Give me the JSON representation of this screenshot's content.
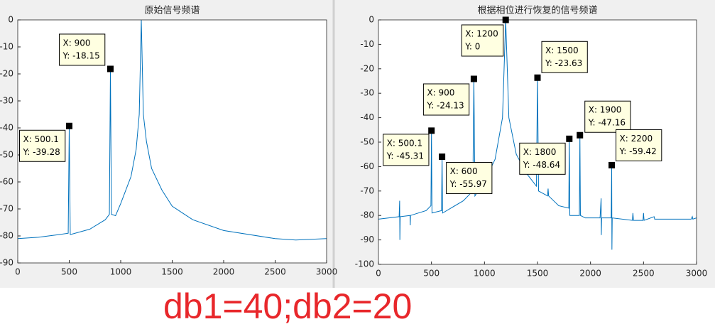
{
  "chart_data": [
    {
      "type": "line",
      "title": "原始信号频谱",
      "color": "#0072bd",
      "xlim": [
        0,
        3000
      ],
      "xticks": [
        0,
        500,
        1000,
        1500,
        2000,
        2500,
        3000
      ],
      "ylim": [
        -90,
        0
      ],
      "yticks": [
        0,
        -10,
        -20,
        -30,
        -40,
        -50,
        -60,
        -70,
        -80,
        -90
      ],
      "x": [
        0,
        200,
        400,
        490,
        500.1,
        510,
        700,
        850,
        890,
        900,
        910,
        950,
        1000,
        1100,
        1150,
        1180,
        1200,
        1220,
        1250,
        1300,
        1400,
        1500,
        1700,
        2000,
        2500,
        2700,
        3000
      ],
      "values": [
        -81,
        -80.5,
        -79.5,
        -79,
        -39.28,
        -79.5,
        -77.5,
        -74,
        -72,
        -18.15,
        -72,
        -72.5,
        -68,
        -58,
        -48,
        -35,
        0,
        -35,
        -45,
        -55,
        -63,
        -69,
        -74,
        -78,
        -81,
        -81.5,
        -81
      ],
      "annotations": [
        {
          "x": 500.1,
          "y": -39.28,
          "x_label": "X: 500.1",
          "y_label": "Y: -39.28"
        },
        {
          "x": 900,
          "y": -18.15,
          "x_label": "X: 900",
          "y_label": "Y: -18.15"
        }
      ]
    },
    {
      "type": "line",
      "title": "根据相位进行恢复的信号频谱",
      "color": "#0072bd",
      "xlim": [
        0,
        3000
      ],
      "xticks": [
        0,
        500,
        1000,
        1500,
        2000,
        2500,
        3000
      ],
      "ylim": [
        -100,
        0
      ],
      "yticks": [
        0,
        -10,
        -20,
        -30,
        -40,
        -50,
        -60,
        -70,
        -80,
        -90,
        -100
      ],
      "x": [
        0,
        195,
        200,
        202,
        205,
        298,
        300,
        302,
        450,
        495,
        500.1,
        505,
        595,
        600,
        605,
        800,
        890,
        900,
        910,
        1000,
        1100,
        1170,
        1200,
        1230,
        1300,
        1400,
        1490,
        1500,
        1510,
        1595,
        1600,
        1605,
        1700,
        1795,
        1800,
        1805,
        1895,
        1900,
        1905,
        1950,
        2090,
        2100,
        2102,
        2105,
        2195,
        2200,
        2202,
        2205,
        2395,
        2400,
        2405,
        2495,
        2500,
        2505,
        2600,
        2605,
        2950,
        2960,
        2965,
        3000
      ],
      "values": [
        -81.5,
        -80.5,
        -74,
        -90,
        -80.5,
        -80,
        -84,
        -80,
        -78,
        -76,
        -45.31,
        -79,
        -78,
        -55.97,
        -79,
        -74,
        -70,
        -24.13,
        -72,
        -66,
        -57,
        -40,
        0,
        -40,
        -55,
        -63,
        -68,
        -23.63,
        -70,
        -72,
        -69,
        -72,
        -76,
        -77,
        -48.64,
        -80,
        -80,
        -47.16,
        -80,
        -81,
        -81,
        -73,
        -88,
        -81,
        -81,
        -59.42,
        -94,
        -81,
        -82,
        -79,
        -82,
        -82,
        -79,
        -82,
        -80.5,
        -81.5,
        -81.5,
        -80.5,
        -81.5,
        -81
      ],
      "annotations": [
        {
          "x": 500.1,
          "y": -45.31,
          "x_label": "X: 500.1",
          "y_label": "Y: -45.31"
        },
        {
          "x": 600,
          "y": -55.97,
          "x_label": "X: 600",
          "y_label": "Y: -55.97"
        },
        {
          "x": 900,
          "y": -24.13,
          "x_label": "X: 900",
          "y_label": "Y: -24.13"
        },
        {
          "x": 1200,
          "y": 0,
          "x_label": "X: 1200",
          "y_label": "Y: 0"
        },
        {
          "x": 1500,
          "y": -23.63,
          "x_label": "X: 1500",
          "y_label": "Y: -23.63"
        },
        {
          "x": 1800,
          "y": -48.64,
          "x_label": "X: 1800",
          "y_label": "Y: -48.64"
        },
        {
          "x": 1900,
          "y": -47.16,
          "x_label": "X: 1900",
          "y_label": "Y: -47.16"
        },
        {
          "x": 2200,
          "y": -59.42,
          "x_label": "X: 2200",
          "y_label": "Y: -59.42"
        }
      ]
    }
  ],
  "caption": "db1=40;db2=20"
}
